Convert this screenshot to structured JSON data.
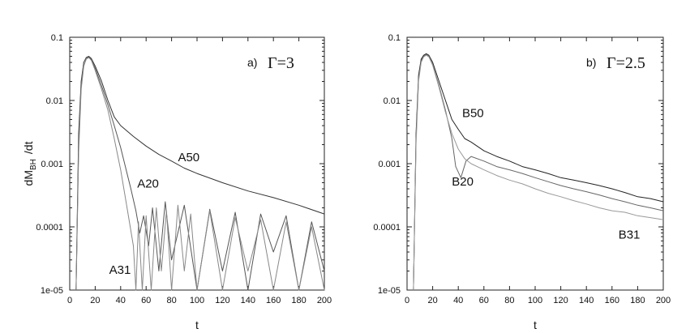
{
  "chart_data": [
    {
      "type": "line",
      "panel_label": "a)",
      "gamma_label": "Γ=3",
      "ylabel": "dM",
      "ylabel_sub": "BH",
      "ylabel_tail": "/dt",
      "xlabel": "t",
      "yscale": "log",
      "xlim": [
        0,
        200
      ],
      "ylim": [
        1e-05,
        0.1
      ],
      "grid": false,
      "x_ticks": [
        "0",
        "20",
        "40",
        "60",
        "80",
        "100",
        "120",
        "140",
        "160",
        "180",
        "200"
      ],
      "y_ticks": [
        "0.1",
        "0.01",
        "0.001",
        "0.0001",
        "1e-05"
      ],
      "series": [
        {
          "name": "A50",
          "color": "#333333",
          "label_pos": [
            85,
            0.0011
          ],
          "x": [
            5,
            7,
            9,
            11,
            13,
            15,
            17,
            20,
            25,
            30,
            35,
            40,
            50,
            60,
            70,
            80,
            90,
            100,
            120,
            140,
            160,
            180,
            200
          ],
          "y": [
            1e-05,
            0.003,
            0.02,
            0.04,
            0.048,
            0.05,
            0.046,
            0.035,
            0.02,
            0.01,
            0.0055,
            0.004,
            0.0027,
            0.0019,
            0.0014,
            0.0011,
            0.00085,
            0.0007,
            0.0005,
            0.00037,
            0.00029,
            0.00022,
            0.00016
          ]
        },
        {
          "name": "A20",
          "color": "#555555",
          "label_pos": [
            53,
            0.00042
          ],
          "x": [
            5,
            7,
            9,
            11,
            13,
            15,
            17,
            20,
            25,
            30,
            35,
            40,
            45,
            48,
            52,
            55,
            58,
            62,
            65,
            70,
            75,
            80,
            90,
            100,
            110,
            120,
            130,
            140,
            150,
            160,
            170,
            180,
            190,
            200
          ],
          "y": [
            1e-05,
            0.002,
            0.018,
            0.04,
            0.047,
            0.049,
            0.044,
            0.032,
            0.017,
            0.0085,
            0.004,
            0.0018,
            0.0007,
            0.0004,
            0.00018,
            8e-05,
            0.00015,
            5e-05,
            0.0002,
            2e-05,
            0.00025,
            3e-05,
            0.00022,
            1e-05,
            0.00019,
            2e-05,
            0.00017,
            1e-05,
            0.00016,
            4e-05,
            0.00015,
            1e-05,
            0.00012,
            2e-05
          ]
        },
        {
          "name": "A31",
          "color": "#888888",
          "label_pos": [
            31,
            1.8e-05
          ],
          "x": [
            5,
            7,
            9,
            11,
            13,
            15,
            17,
            20,
            25,
            30,
            35,
            40,
            45,
            50,
            52,
            54,
            57,
            60,
            64,
            68,
            72,
            76,
            80,
            85,
            90,
            95,
            100,
            110,
            120,
            130,
            140,
            150,
            160,
            170,
            180,
            190,
            200
          ],
          "y": [
            1e-05,
            0.0015,
            0.015,
            0.035,
            0.045,
            0.048,
            0.043,
            0.03,
            0.015,
            0.007,
            0.0025,
            0.0008,
            0.0002,
            5e-05,
            1e-05,
            0.00012,
            1e-05,
            0.00015,
            1e-05,
            0.0002,
            2e-05,
            0.00018,
            1e-05,
            0.00022,
            2e-05,
            0.00016,
            1e-05,
            0.00018,
            1e-05,
            0.00014,
            2e-05,
            0.00013,
            1e-05,
            0.00012,
            1e-05,
            0.0001,
            1e-05
          ]
        }
      ]
    },
    {
      "type": "line",
      "panel_label": "b)",
      "gamma_label": "Γ=2.5",
      "xlabel": "t",
      "yscale": "log",
      "xlim": [
        0,
        200
      ],
      "ylim": [
        1e-05,
        0.1
      ],
      "grid": false,
      "x_ticks": [
        "0",
        "20",
        "40",
        "60",
        "80",
        "100",
        "120",
        "140",
        "160",
        "180",
        "200"
      ],
      "y_ticks": [
        "0.1",
        "0.01",
        "0.001",
        "0.0001",
        "1e-05"
      ],
      "series": [
        {
          "name": "B50",
          "color": "#222222",
          "label_pos": [
            43,
            0.0055
          ],
          "x": [
            5,
            7,
            9,
            11,
            13,
            15,
            17,
            20,
            25,
            30,
            35,
            40,
            45,
            50,
            60,
            70,
            80,
            90,
            100,
            110,
            120,
            130,
            140,
            150,
            160,
            170,
            180,
            190,
            200
          ],
          "y": [
            1e-05,
            0.003,
            0.025,
            0.045,
            0.052,
            0.055,
            0.052,
            0.04,
            0.02,
            0.01,
            0.005,
            0.0035,
            0.0025,
            0.0022,
            0.0016,
            0.0013,
            0.0011,
            0.0009,
            0.0008,
            0.0007,
            0.0006,
            0.00055,
            0.0005,
            0.00045,
            0.0004,
            0.00035,
            0.0003,
            0.00028,
            0.00025
          ]
        },
        {
          "name": "B20",
          "color": "#666666",
          "label_pos": [
            35,
            0.00045
          ],
          "x": [
            5,
            7,
            9,
            11,
            13,
            15,
            17,
            20,
            25,
            30,
            35,
            38,
            42,
            46,
            50,
            60,
            70,
            80,
            90,
            100,
            110,
            120,
            130,
            140,
            150,
            160,
            170,
            180,
            190,
            200
          ],
          "y": [
            1e-05,
            0.0025,
            0.022,
            0.042,
            0.05,
            0.053,
            0.05,
            0.037,
            0.017,
            0.007,
            0.0025,
            0.0009,
            0.0006,
            0.0011,
            0.0013,
            0.0011,
            0.0009,
            0.0008,
            0.0007,
            0.0006,
            0.00052,
            0.00045,
            0.0004,
            0.00036,
            0.00032,
            0.00028,
            0.00025,
            0.00022,
            0.0002,
            0.00018
          ]
        },
        {
          "name": "B31",
          "color": "#999999",
          "label_pos": [
            165,
            6.5e-05
          ],
          "x": [
            5,
            7,
            9,
            11,
            13,
            15,
            17,
            20,
            25,
            30,
            35,
            40,
            45,
            50,
            60,
            70,
            80,
            90,
            100,
            110,
            120,
            130,
            140,
            150,
            160,
            170,
            180,
            190,
            200
          ],
          "y": [
            1e-05,
            0.002,
            0.02,
            0.04,
            0.049,
            0.052,
            0.049,
            0.036,
            0.016,
            0.0065,
            0.003,
            0.0017,
            0.0012,
            0.001,
            0.0008,
            0.00065,
            0.00055,
            0.00048,
            0.0004,
            0.00034,
            0.0003,
            0.00026,
            0.00023,
            0.0002,
            0.00018,
            0.00017,
            0.00015,
            0.00014,
            0.00013
          ]
        }
      ]
    }
  ]
}
